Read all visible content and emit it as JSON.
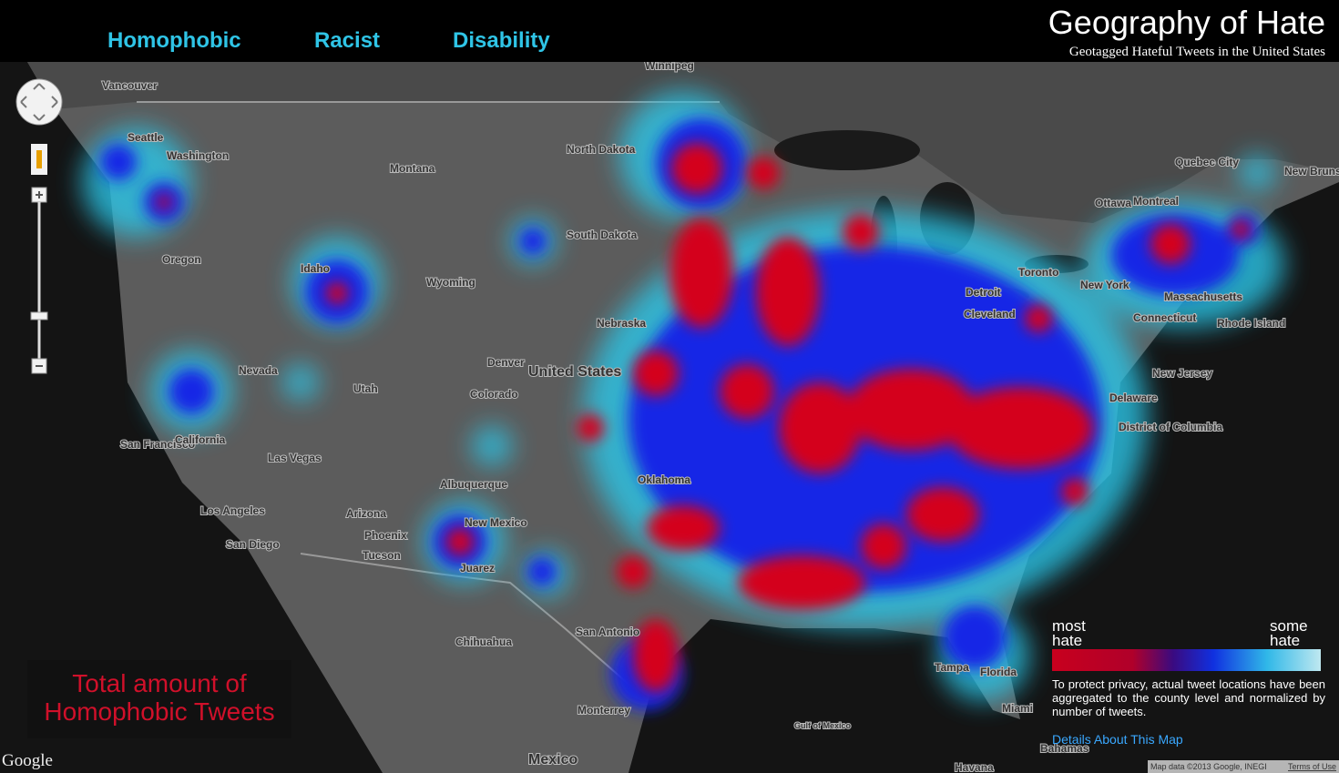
{
  "header": {
    "tabs": [
      "Homophobic",
      "Racist",
      "Disability"
    ],
    "title": "Geography of Hate",
    "subtitle": "Geotagged Hateful Tweets in the United States"
  },
  "map": {
    "labels": [
      "Vancouver",
      "Seattle",
      "Washington",
      "Montana",
      "Oregon",
      "Idaho",
      "Wyoming",
      "North Dakota",
      "South Dakota",
      "Nebraska",
      "Nevada",
      "Utah",
      "Colorado",
      "Denver",
      "United States",
      "San Francisco",
      "California",
      "Las Vegas",
      "Los Angeles",
      "Arizona",
      "Phoenix",
      "Tucson",
      "San Diego",
      "Albuquerque",
      "New Mexico",
      "Juarez",
      "Chihuahua",
      "Oklahoma",
      "San Antonio",
      "Monterrey",
      "Mexico",
      "Winnipeg",
      "Ottawa",
      "Montreal",
      "Quebec City",
      "New Brunswick",
      "Toronto",
      "Detroit",
      "Cleveland",
      "New York",
      "Massachusetts",
      "Connecticut",
      "Rhode Island",
      "New Jersey",
      "Delaware",
      "District of Columbia",
      "Tampa",
      "Florida",
      "Miami",
      "Havana",
      "Bahamas",
      "Gulf of Mexico"
    ]
  },
  "overlay": {
    "lines": [
      "Total amount of",
      "Homophobic Tweets"
    ]
  },
  "legend": {
    "most": [
      "most",
      "hate"
    ],
    "some": [
      "some",
      "hate"
    ],
    "note": "To protect privacy, actual tweet locations have been aggregated to the county level and normalized by number of tweets.",
    "link": "Details About This Map"
  },
  "footer": {
    "brand": "Google",
    "attribution": "Map data ©2013 Google, INEGI",
    "terms": "Terms of Use"
  }
}
